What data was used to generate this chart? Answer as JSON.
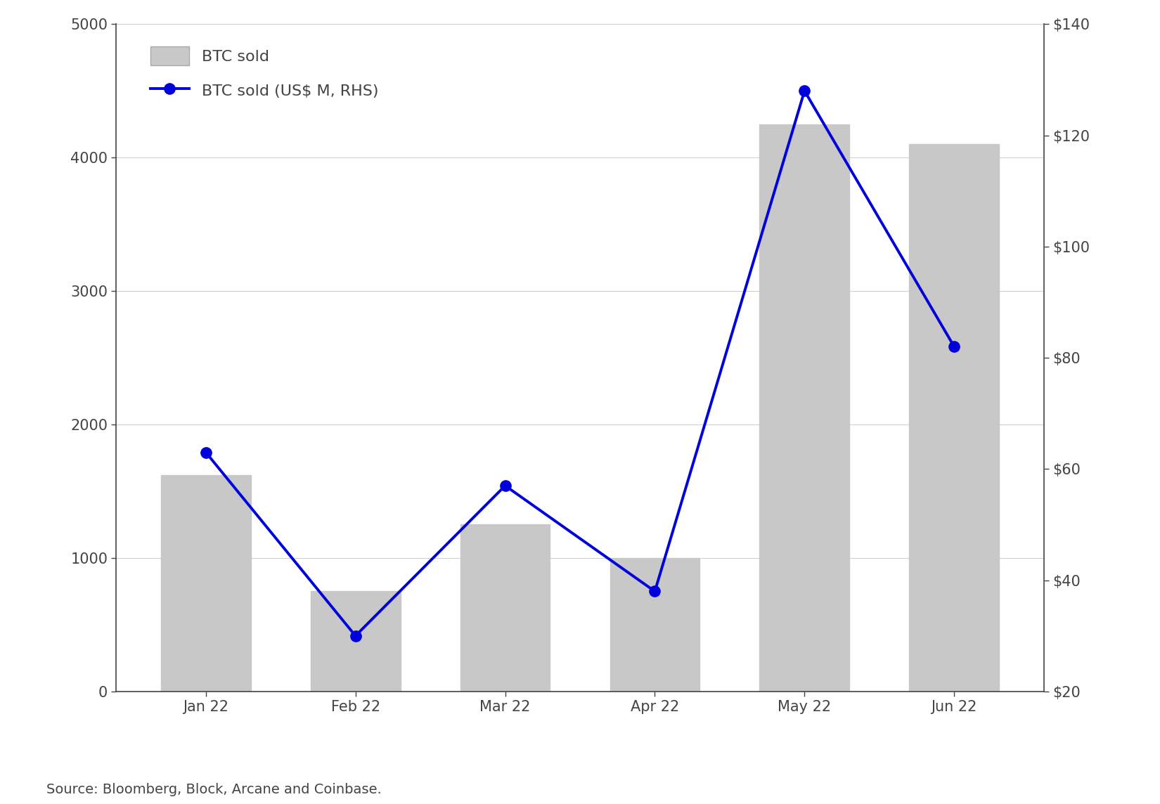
{
  "categories": [
    "Jan 22",
    "Feb 22",
    "Mar 22",
    "Apr 22",
    "May 22",
    "Jun 22"
  ],
  "btc_sold": [
    1620,
    750,
    1250,
    1000,
    4250,
    4100
  ],
  "usd_sold": [
    63,
    30,
    57,
    38,
    128,
    82
  ],
  "bar_color": "#c8c8c8",
  "line_color": "#0000dd",
  "left_ylim": [
    0,
    5000
  ],
  "right_ylim": [
    20,
    140
  ],
  "left_yticks": [
    0,
    1000,
    2000,
    3000,
    4000,
    5000
  ],
  "right_yticks": [
    20,
    40,
    60,
    80,
    100,
    120,
    140
  ],
  "right_yticklabels": [
    "$20",
    "$40",
    "$60",
    "$80",
    "$100",
    "$120",
    "$140"
  ],
  "legend_label_bar": "BTC sold",
  "legend_label_line": "BTC sold (US$ M, RHS)",
  "source_text": "Source: Bloomberg, Block, Arcane and Coinbase.",
  "background_color": "#ffffff",
  "grid_color": "#d0d0d0",
  "tick_fontsize": 15,
  "legend_fontsize": 16,
  "source_fontsize": 14,
  "bar_width": 0.6,
  "marker_size": 11,
  "line_width": 2.8
}
